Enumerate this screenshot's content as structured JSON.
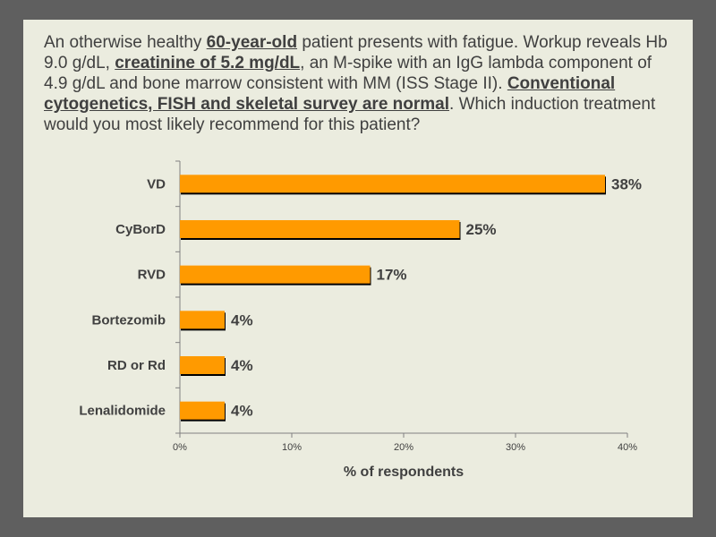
{
  "question": {
    "segments": [
      {
        "text": "An otherwise healthy ",
        "emphasis": false
      },
      {
        "text": "60-year-old",
        "emphasis": true
      },
      {
        "text": " patient presents with fatigue. Workup reveals Hb 9.0 g/dL, ",
        "emphasis": false
      },
      {
        "text": "creatinine of 5.2 mg/dL",
        "emphasis": true
      },
      {
        "text": ", an M-spike with an IgG lambda component of 4.9 g/dL and bone marrow consistent with MM (ISS Stage II). ",
        "emphasis": false
      },
      {
        "text": "Conventional cytogenetics, FISH and skeletal survey are normal",
        "emphasis": true
      },
      {
        "text": ". Which induction treatment would you most likely recommend for this patient?",
        "emphasis": false
      }
    ]
  },
  "colors": {
    "bar_fill": "#ff9a00",
    "bar_edge": "#000000",
    "text": "#404040",
    "axis": "#808080",
    "slide_bg": "#ebecdf",
    "frame_bg": "#5f5f5f"
  },
  "chart_data": {
    "type": "bar",
    "orientation": "horizontal",
    "categories": [
      "VD",
      "CyBorD",
      "RVD",
      "Bortezomib",
      "RD or Rd",
      "Lenalidomide"
    ],
    "values": [
      38,
      25,
      17,
      4,
      4,
      4
    ],
    "data_labels": [
      "38%",
      "25%",
      "17%",
      "4%",
      "4%",
      "4%"
    ],
    "xlabel": "% of respondents",
    "xlim": [
      0,
      40
    ],
    "xticks": [
      0,
      10,
      20,
      30,
      40
    ],
    "xtick_labels": [
      "0%",
      "10%",
      "20%",
      "30%",
      "40%"
    ],
    "grid": false,
    "legend": "none"
  }
}
